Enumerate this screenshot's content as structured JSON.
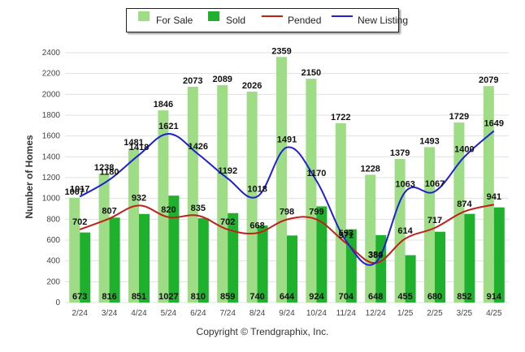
{
  "legend": {
    "for_sale": "For Sale",
    "sold": "Sold",
    "pended": "Pended",
    "new_listing": "New Listing"
  },
  "footer": {
    "copyright": "Copyright © Trendgraphix, Inc."
  },
  "colors": {
    "for_sale": "#9edc85",
    "sold": "#1fb12e",
    "pended": "#c0201a",
    "new_listing": "#1f1fd6",
    "grid": "#e0e0e0"
  },
  "chart_data": {
    "type": "bar",
    "ylabel": "Number of Homes",
    "ylim": [
      0,
      2400
    ],
    "yticks": [
      0,
      200,
      400,
      600,
      800,
      1000,
      1200,
      1400,
      1600,
      1800,
      2000,
      2200,
      2400
    ],
    "grid": true,
    "legend_position": "top-center",
    "categories": [
      "2/24",
      "3/24",
      "4/24",
      "5/24",
      "6/24",
      "7/24",
      "8/24",
      "9/24",
      "10/24",
      "11/24",
      "12/24",
      "1/25",
      "2/25",
      "3/25",
      "4/25"
    ],
    "series": [
      {
        "name": "For Sale",
        "type": "bar",
        "values": [
          1007,
          1238,
          1481,
          1846,
          2073,
          2089,
          2026,
          2359,
          2150,
          1722,
          1228,
          1379,
          1493,
          1729,
          2079
        ]
      },
      {
        "name": "Sold",
        "type": "bar",
        "values": [
          673,
          816,
          851,
          1027,
          810,
          859,
          740,
          644,
          924,
          704,
          648,
          455,
          680,
          852,
          914
        ]
      },
      {
        "name": "Pended",
        "type": "line",
        "values": [
          702,
          807,
          932,
          820,
          835,
          702,
          668,
          798,
          799,
          571,
          380,
          614,
          717,
          874,
          941
        ]
      },
      {
        "name": "New Listing",
        "type": "line",
        "values": [
          1017,
          1180,
          1418,
          1621,
          1426,
          1192,
          1018,
          1491,
          1170,
          593,
          384,
          1063,
          1067,
          1400,
          1649
        ]
      }
    ]
  }
}
